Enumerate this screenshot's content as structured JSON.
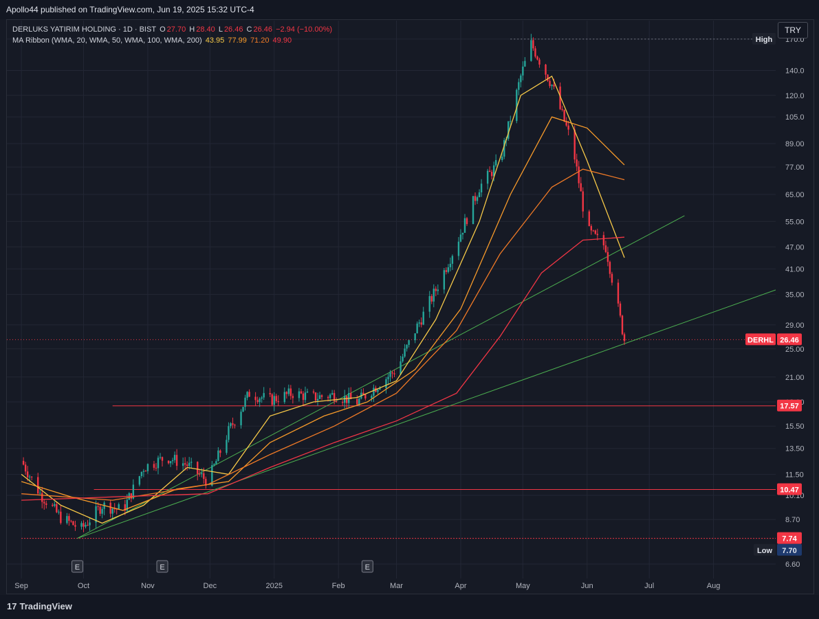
{
  "publisher": "Apollo44 published on TradingView.com, Jun 19, 2025 15:32 UTC-4",
  "footer_brand": "TradingView",
  "currency_button": "TRY",
  "legend": {
    "symbol": "DERLUKS YATIRIM HOLDING · 1D · BIST",
    "o_label": "O",
    "o": "27.70",
    "h_label": "H",
    "h": "28.40",
    "l_label": "L",
    "l": "26.46",
    "c_label": "C",
    "c": "26.46",
    "change": "−2.94 (−10.00%)",
    "indicator": "MA Ribbon (WMA, 20, WMA, 50, WMA, 100, WMA, 200)",
    "ma_values": [
      "43.95",
      "77.99",
      "71.20",
      "49.90"
    ]
  },
  "colors": {
    "bg": "#161a25",
    "up": "#26a69a",
    "down": "#f23645",
    "ma20": "#f7c948",
    "ma50": "#f89b2a",
    "ma100": "#f07a26",
    "ma200": "#f23645",
    "trendline": "#4caf50",
    "hline": "#f23645",
    "grid": "#232735"
  },
  "chart_data": {
    "type": "line",
    "scale": "log",
    "y_ticks": [
      "170.0",
      "140.0",
      "120.0",
      "105.0",
      "89.00",
      "77.00",
      "65.00",
      "55.00",
      "47.00",
      "41.00",
      "35.00",
      "29.00",
      "25.00",
      "21.00",
      "18.00",
      "15.50",
      "13.50",
      "11.50",
      "10.10",
      "8.70",
      "6.60"
    ],
    "x_ticks": [
      "Sep",
      "Oct",
      "Nov",
      "Dec",
      "2025",
      "Feb",
      "Mar",
      "Apr",
      "May",
      "Jun",
      "Jul",
      "Aug"
    ],
    "earnings_marker": "E",
    "price_series": {
      "name": "DERHL",
      "dates": [
        "2024-09-01",
        "2024-09-10",
        "2024-09-20",
        "2024-09-30",
        "2024-10-10",
        "2024-10-20",
        "2024-10-30",
        "2024-11-10",
        "2024-11-20",
        "2024-11-30",
        "2024-12-10",
        "2024-12-20",
        "2024-12-30",
        "2025-01-10",
        "2025-01-20",
        "2025-01-30",
        "2025-02-10",
        "2025-02-20",
        "2025-03-01",
        "2025-03-10",
        "2025-03-20",
        "2025-03-30",
        "2025-04-10",
        "2025-04-20",
        "2025-04-30",
        "2025-05-05",
        "2025-05-15",
        "2025-05-25",
        "2025-06-01",
        "2025-06-10",
        "2025-06-19"
      ],
      "close": [
        12.5,
        10.2,
        8.8,
        8.2,
        9.5,
        9.2,
        12.0,
        12.8,
        12.2,
        11.0,
        15.0,
        19.0,
        18.2,
        19.0,
        18.5,
        18.8,
        18.0,
        20.0,
        22.0,
        28.0,
        36.0,
        48.0,
        68.0,
        80.0,
        135.0,
        165.0,
        128.0,
        88.0,
        52.0,
        47.0,
        26.46
      ]
    },
    "ma_series": [
      {
        "name": "WMA 20",
        "color": "#f7c948",
        "dates": [
          "2024-09-01",
          "2024-09-20",
          "2024-10-10",
          "2024-10-30",
          "2024-11-20",
          "2024-12-10",
          "2024-12-30",
          "2025-01-20",
          "2025-02-10",
          "2025-03-01",
          "2025-03-20",
          "2025-04-10",
          "2025-04-30",
          "2025-05-15",
          "2025-06-01",
          "2025-06-19"
        ],
        "values": [
          11.5,
          9.5,
          8.5,
          9.5,
          12.0,
          11.5,
          16.5,
          18.0,
          18.5,
          20.5,
          30.0,
          55.0,
          120.0,
          135.0,
          80.0,
          43.95
        ]
      },
      {
        "name": "WMA 50",
        "color": "#f89b2a",
        "dates": [
          "2024-09-01",
          "2024-09-25",
          "2024-10-20",
          "2024-11-15",
          "2024-12-10",
          "2024-12-30",
          "2025-01-25",
          "2025-02-15",
          "2025-03-10",
          "2025-04-01",
          "2025-04-25",
          "2025-05-15",
          "2025-06-01",
          "2025-06-19"
        ],
        "values": [
          11.0,
          10.0,
          9.2,
          10.5,
          11.0,
          14.0,
          16.5,
          18.0,
          22.0,
          32.0,
          65.0,
          105.0,
          98.0,
          77.99
        ]
      },
      {
        "name": "WMA 100",
        "color": "#f07a26",
        "dates": [
          "2024-09-01",
          "2024-10-15",
          "2024-11-30",
          "2024-12-30",
          "2025-01-30",
          "2025-03-01",
          "2025-03-30",
          "2025-04-20",
          "2025-05-15",
          "2025-05-30",
          "2025-06-19"
        ],
        "values": [
          10.2,
          9.8,
          10.8,
          13.0,
          15.5,
          19.0,
          28.0,
          45.0,
          68.0,
          76.0,
          71.2
        ]
      },
      {
        "name": "WMA 200",
        "color": "#f23645",
        "dates": [
          "2024-09-01",
          "2024-10-15",
          "2024-11-30",
          "2024-12-30",
          "2025-01-30",
          "2025-03-01",
          "2025-03-30",
          "2025-04-20",
          "2025-05-10",
          "2025-05-30",
          "2025-06-19"
        ],
        "values": [
          9.8,
          10.0,
          10.2,
          12.0,
          14.0,
          16.0,
          19.0,
          27.0,
          40.0,
          49.0,
          49.9
        ]
      }
    ],
    "price_labels": {
      "high_label": "High",
      "high": "170.0",
      "low_label": "Low",
      "low": "7.70",
      "symbol": "DERHL",
      "last": "26.46",
      "levels": [
        "17.57",
        "10.47",
        "7.74"
      ]
    }
  }
}
